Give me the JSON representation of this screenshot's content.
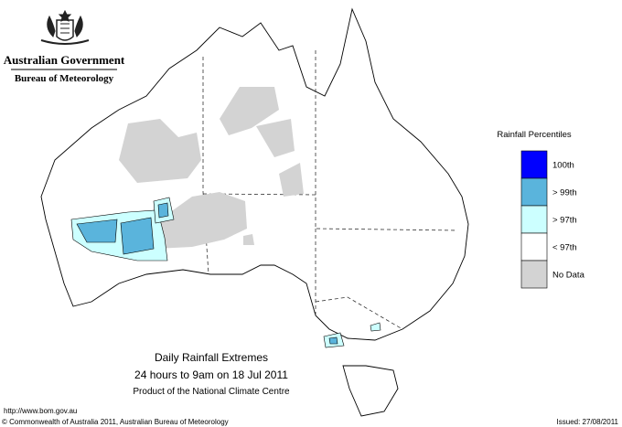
{
  "header": {
    "title": "Australian Government",
    "subtitle": "Bureau of Meteorology"
  },
  "legend": {
    "title": "Rainfall Percentiles",
    "items": [
      {
        "label": "100th",
        "color": "#0000ff"
      },
      {
        "label": "> 99th",
        "color": "#5ab4dc"
      },
      {
        "label": "> 97th",
        "color": "#ccffff"
      },
      {
        "label": "< 97th",
        "color": "#ffffff"
      },
      {
        "label": "No Data",
        "color": "#d3d3d3"
      }
    ]
  },
  "caption": {
    "title": "Daily Rainfall Extremes",
    "period": "24 hours to 9am on 18 Jul 2011",
    "product": "Product of the National Climate Centre"
  },
  "footer": {
    "url": "http://www.bom.gov.au",
    "copyright": "© Commonwealth of Australia 2011, Australian Bureau of Meteorology",
    "issued": "Issued: 27/08/2011"
  }
}
